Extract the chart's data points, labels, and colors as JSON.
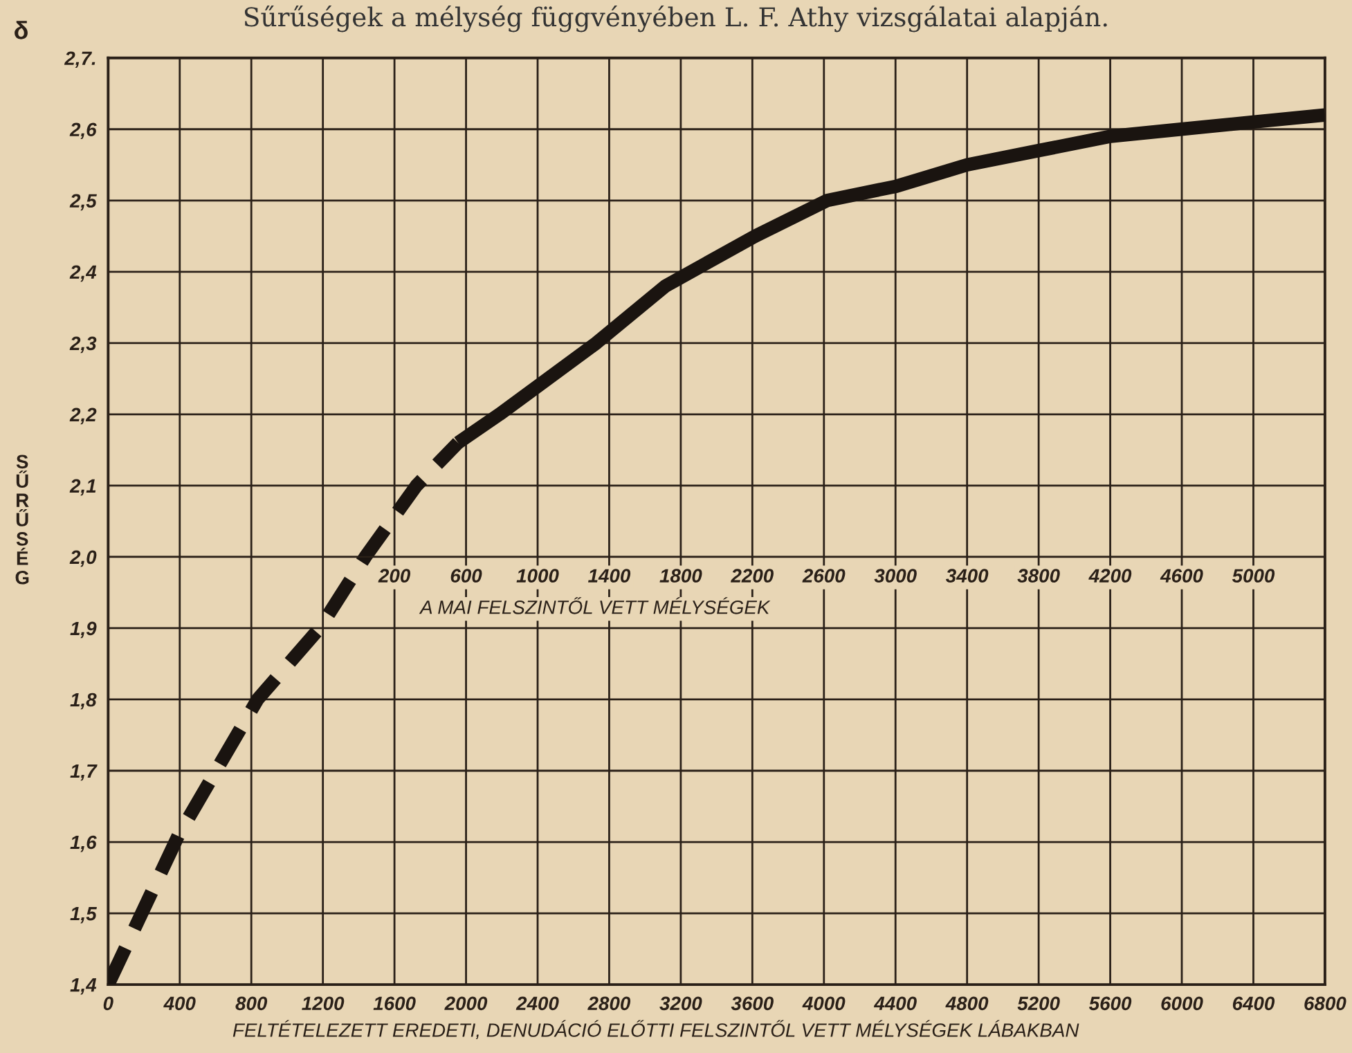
{
  "chart_data": {
    "type": "line",
    "title": "Sűrűségek a mélység függvényében L. F. Athy vizsgálatai alapján.",
    "xlabel": "FELTÉTELEZETT EREDETI, DENUDÁCIÓ ELŐTTI FELSZINTŐL VETT MÉLYSÉGEK LÁBAKBAN",
    "x2label": "A MAI FELSZINTŐL VETT MÉLYSÉGEK",
    "ylabel": "SŰRŰSÉG",
    "annotations": [
      "δ"
    ],
    "series": [
      {
        "color": "#1a1410",
        "line_style": "dashed",
        "x": [
          0,
          394,
          835,
          1182,
          1437,
          1723,
          1955
        ],
        "values": [
          1.4,
          1.61,
          1.8,
          1.9,
          2.0,
          2.1,
          2.16
        ]
      },
      {
        "color": "#1a1410",
        "line_style": "solid",
        "x": [
          1955,
          2187,
          2728,
          3114,
          3616,
          4018,
          4405,
          4800,
          5200,
          5602,
          5996,
          6398,
          6800
        ],
        "values": [
          2.16,
          2.2,
          2.3,
          2.38,
          2.45,
          2.5,
          2.52,
          2.55,
          2.57,
          2.59,
          2.6,
          2.61,
          2.62
        ]
      }
    ],
    "xlim": [
      0,
      6800
    ],
    "xticks": [
      0,
      400,
      800,
      1200,
      1600,
      2000,
      2400,
      2800,
      3200,
      3600,
      4000,
      4400,
      4800,
      5200,
      5600,
      6000,
      6400,
      6800
    ],
    "x2lim": [
      -1400,
      5400
    ],
    "x2ticks": [
      200,
      600,
      1000,
      1400,
      1800,
      2200,
      2600,
      3000,
      3400,
      3800,
      4200,
      4600,
      5000
    ],
    "ylim": [
      1.4,
      2.7
    ],
    "yticks": [
      {
        "value": 1.4,
        "label": "1,4"
      },
      {
        "value": 1.5,
        "label": "1,5"
      },
      {
        "value": 1.6,
        "label": "1,6"
      },
      {
        "value": 1.7,
        "label": "1,7"
      },
      {
        "value": 1.8,
        "label": "1,8"
      },
      {
        "value": 1.9,
        "label": "1,9"
      },
      {
        "value": 2.0,
        "label": "2,0"
      },
      {
        "value": 2.1,
        "label": "2,1"
      },
      {
        "value": 2.2,
        "label": "2,2"
      },
      {
        "value": 2.3,
        "label": "2,3"
      },
      {
        "value": 2.4,
        "label": "2,4"
      },
      {
        "value": 2.5,
        "label": "2,5"
      },
      {
        "value": 2.6,
        "label": "2,6"
      },
      {
        "value": 2.7,
        "label": "2,7."
      }
    ],
    "grid": true,
    "legend": false
  }
}
